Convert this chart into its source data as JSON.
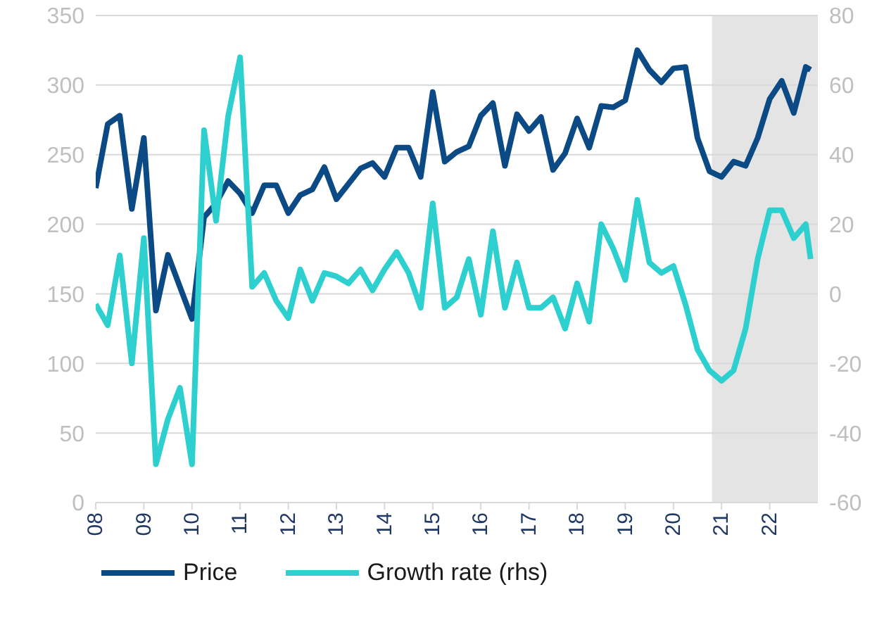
{
  "chart_data": {
    "type": "line",
    "x": [
      2008,
      2008.25,
      2008.5,
      2008.75,
      2009,
      2009.25,
      2009.5,
      2009.75,
      2010,
      2010.25,
      2010.5,
      2010.75,
      2011,
      2011.25,
      2011.5,
      2011.75,
      2012,
      2012.25,
      2012.5,
      2012.75,
      2013,
      2013.25,
      2013.5,
      2013.75,
      2014,
      2014.25,
      2014.5,
      2014.75,
      2015,
      2015.25,
      2015.5,
      2015.75,
      2016,
      2016.25,
      2016.5,
      2016.75,
      2017,
      2017.25,
      2017.5,
      2017.75,
      2018,
      2018.25,
      2018.5,
      2018.75,
      2019,
      2019.25,
      2019.5,
      2019.75,
      2020,
      2020.25,
      2020.5,
      2020.75,
      2021,
      2021.25,
      2021.5,
      2021.75,
      2022,
      2022.25,
      2022.5,
      2022.75,
      2022.85
    ],
    "series": [
      {
        "name": "Price",
        "color": "#0b4a85",
        "values": [
          226,
          272,
          278,
          211,
          262,
          138,
          178,
          155,
          132,
          205,
          215,
          231,
          222,
          208,
          228,
          228,
          208,
          221,
          225,
          241,
          218,
          229,
          240,
          244,
          234,
          255,
          255,
          234,
          295,
          245,
          252,
          256,
          278,
          287,
          242,
          279,
          267,
          277,
          239,
          251,
          276,
          255,
          285,
          284,
          289,
          325,
          311,
          302,
          312,
          313,
          262,
          238,
          234,
          245,
          242,
          262,
          290,
          303,
          280,
          313,
          311
        ]
      },
      {
        "name": "Growth rate (rhs)",
        "color": "#2ecfcf",
        "axis": "y2",
        "values": [
          -3,
          -9,
          11,
          -20,
          16,
          -49,
          -36,
          -27,
          -49,
          47,
          21,
          51,
          68,
          2,
          6,
          -2,
          -7,
          7,
          -2,
          6,
          5,
          3,
          7,
          1,
          7,
          12,
          6,
          -4,
          26,
          -4,
          -1,
          10,
          -6,
          18,
          -4,
          9,
          -4,
          -4,
          -1,
          -10,
          3,
          -8,
          20,
          13,
          4,
          27,
          9,
          6,
          8,
          -3,
          -16,
          -22,
          -25,
          -22,
          -10,
          10,
          24,
          24,
          16,
          20,
          10
        ]
      }
    ],
    "xlim": [
      2008,
      2023
    ],
    "xticks": [
      {
        "value": 2008,
        "label": "08"
      },
      {
        "value": 2009,
        "label": "09"
      },
      {
        "value": 2010,
        "label": "10"
      },
      {
        "value": 2011,
        "label": "11"
      },
      {
        "value": 2012,
        "label": "12"
      },
      {
        "value": 2013,
        "label": "13"
      },
      {
        "value": 2014,
        "label": "14"
      },
      {
        "value": 2015,
        "label": "15"
      },
      {
        "value": 2016,
        "label": "16"
      },
      {
        "value": 2017,
        "label": "17"
      },
      {
        "value": 2018,
        "label": "18"
      },
      {
        "value": 2019,
        "label": "19"
      },
      {
        "value": 2020,
        "label": "20"
      },
      {
        "value": 2021,
        "label": "21"
      },
      {
        "value": 2022,
        "label": "22"
      }
    ],
    "ylim": [
      0,
      350
    ],
    "yticks": [
      0,
      50,
      100,
      150,
      200,
      250,
      300,
      350
    ],
    "y2lim": [
      -60,
      80
    ],
    "y2ticks": [
      -60,
      -40,
      -20,
      0,
      20,
      40,
      60,
      80
    ],
    "bands": [
      {
        "axis": "x",
        "from": 2020.8,
        "to": 2023,
        "color": "#d9d9d9"
      }
    ],
    "grid": "y",
    "legend": "bottom",
    "marker": "none",
    "line_style": "solid"
  }
}
